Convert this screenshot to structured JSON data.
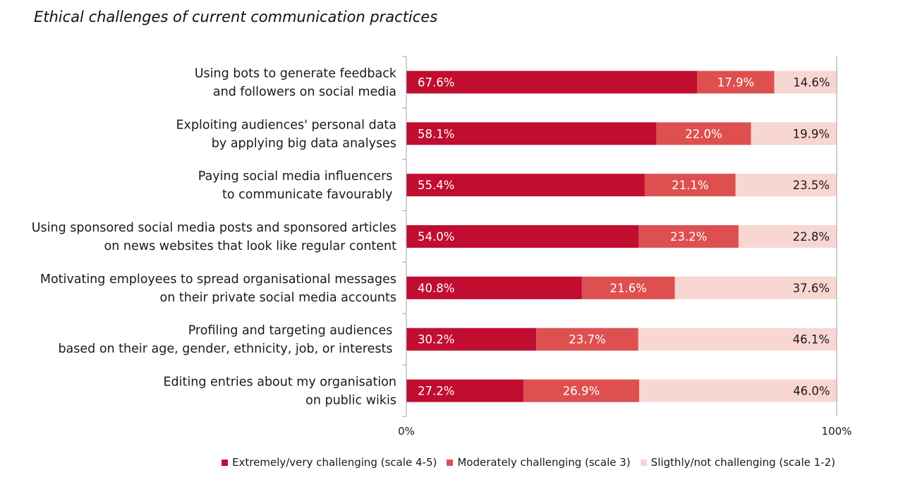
{
  "chart_data": {
    "type": "bar",
    "orientation": "horizontal",
    "stacked": true,
    "title": "Ethical challenges of current communication practices",
    "categories": [
      [
        "Using bots to generate feedback",
        "and followers on social media"
      ],
      [
        "Exploiting audiences' personal data",
        "by applying big data analyses"
      ],
      [
        "Paying social media influencers ",
        "to communicate favourably "
      ],
      [
        "Using sponsored social media posts and sponsored articles",
        "on news websites that look like regular content"
      ],
      [
        "Motivating employees to spread organisational messages",
        "on their private social media accounts"
      ],
      [
        "Profiling and targeting audiences ",
        "based on their age, gender, ethnicity, job, or interests "
      ],
      [
        "Editing entries about my organisation",
        "on public wikis"
      ]
    ],
    "series": [
      {
        "name": "Extremely/very challenging (scale 4-5)",
        "color": "#c00d30",
        "label_color": "#ffffff",
        "label_align": "left",
        "values": [
          67.6,
          58.1,
          55.4,
          54.0,
          40.8,
          30.2,
          27.2
        ],
        "labels": [
          "67.6%",
          "58.1%",
          "55.4%",
          "54.0%",
          "40.8%",
          "30.2%",
          "27.2%"
        ]
      },
      {
        "name": "Moderately challenging (scale 3)",
        "color": "#de5050",
        "label_color": "#ffffff",
        "label_align": "center",
        "values": [
          17.9,
          22.0,
          21.1,
          23.2,
          21.6,
          23.7,
          26.9
        ],
        "labels": [
          "17.9%",
          "22.0%",
          "21.1%",
          "23.2%",
          "21.6%",
          "23.7%",
          "26.9%"
        ]
      },
      {
        "name": "Sligthly/not challenging (scale 1-2)",
        "color": "#f8d6d2",
        "label_color": "#1a1a1a",
        "label_align": "right",
        "values": [
          14.6,
          19.9,
          23.5,
          22.8,
          37.6,
          46.1,
          46.0
        ],
        "labels": [
          "14.6%",
          "19.9%",
          "23.5%",
          "22.8%",
          "37.6%",
          "46.1%",
          "46.0%"
        ]
      }
    ],
    "xlim": [
      0,
      100
    ],
    "xticks": [
      "0%",
      "100%"
    ],
    "xlabel": "",
    "ylabel": "",
    "grid": false,
    "legend_position": "bottom-right"
  }
}
